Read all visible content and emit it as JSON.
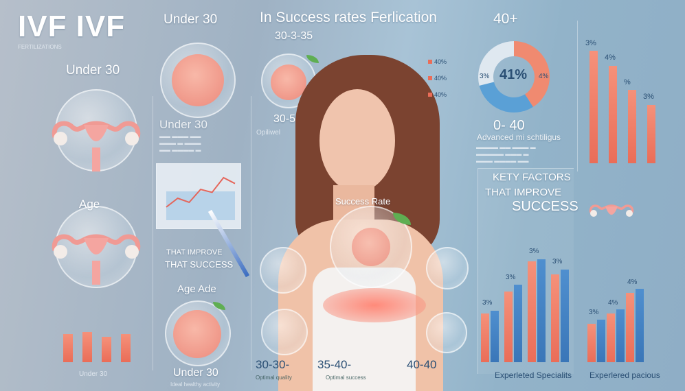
{
  "header": {
    "title": "IVF IVF",
    "subtitle": "FERTILIZATIONS",
    "center_title": "In Success rates Ferlication",
    "col1_title": "Under 30",
    "col2_label": "30-3-35",
    "col3_title": "40+"
  },
  "left": {
    "under30": "Under 30",
    "age": "Age"
  },
  "col1": {
    "under30": "Under 30",
    "age": "Age Ade",
    "bottom": "Under 30",
    "bottom_sub": "Ideal healthy activity"
  },
  "col2": {
    "range": "30-50",
    "label": "Opiliwel",
    "side_values": [
      "40%",
      "40%",
      "40%"
    ],
    "improve_line1": "THAT IMPROVE",
    "improve_line2": "THAT SUCCESS"
  },
  "center": {
    "success_rate": "Success Rate",
    "bottom_labels": [
      "30-30-",
      "35-40-",
      "40-40"
    ],
    "bottom_subs": [
      "Optimal quality",
      "Optimal success"
    ]
  },
  "donut": {
    "value_label": "41%",
    "left_label": "3%",
    "right_label": "4%",
    "range": "0- 40",
    "caption": "Advanced mi schtiligus",
    "segments": [
      {
        "value": 41,
        "color": "#f08a70"
      },
      {
        "value": 30,
        "color": "#5aa0d6"
      },
      {
        "value": 29,
        "color": "#dfe8f0"
      }
    ]
  },
  "factors": {
    "title_line1": "KETY FACTORS",
    "title_line2": "THAT IMPROVE",
    "title_line3": "SUCCESS"
  },
  "top_right_bars": {
    "labels": [
      "3%",
      "4%",
      "%",
      "3%"
    ],
    "values": [
      92,
      80,
      60,
      48
    ]
  },
  "mid_bars": {
    "labels": [
      "3%",
      "3%",
      "3%",
      "3%"
    ],
    "values": [
      [
        40,
        38
      ],
      [
        60,
        55
      ],
      [
        80,
        78
      ],
      [
        72,
        68
      ]
    ],
    "caption": "Experleted Specialits"
  },
  "bottom_right_bars": {
    "labels": [
      "3%",
      "4%",
      "4%"
    ],
    "values": [
      [
        42,
        38
      ],
      [
        52,
        48
      ],
      [
        72,
        68
      ]
    ],
    "caption": "Experlered pacious"
  },
  "left_bars": {
    "values": [
      60,
      65,
      55,
      60
    ],
    "caption": "Under 30"
  },
  "chart_card": {
    "values": [
      20,
      35,
      28,
      50,
      45,
      70,
      60
    ]
  },
  "colors": {
    "orange": "#ea6d58",
    "blue": "#3a76b8",
    "background": "#9fb2c4"
  }
}
